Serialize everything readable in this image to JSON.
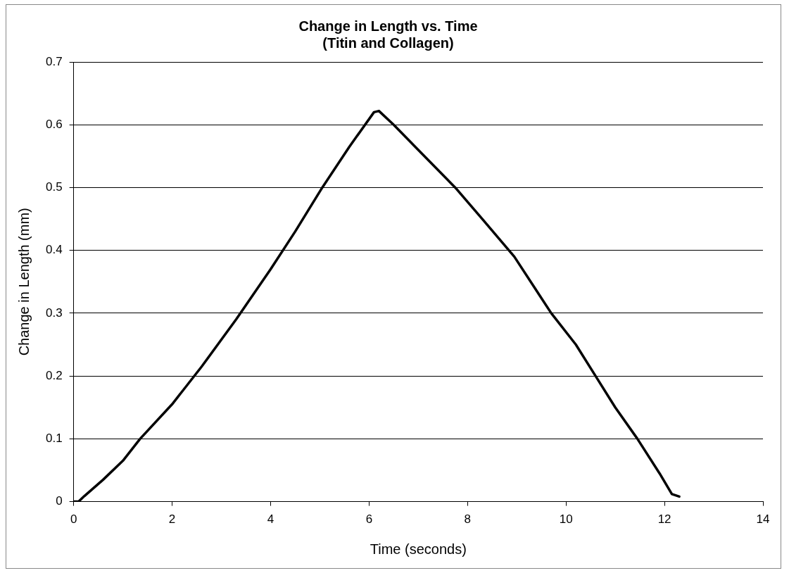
{
  "chart_data": {
    "type": "line",
    "title": "Change in Length vs. Time\n(Titin and Collagen)",
    "xlabel": "Time (seconds)",
    "ylabel": "Change in Length (mm)",
    "x": [
      0,
      0.1,
      0.22,
      0.6,
      1.0,
      1.35,
      2.0,
      2.6,
      3.3,
      4.0,
      4.5,
      5.05,
      5.6,
      6.1,
      6.2,
      6.5,
      7.0,
      7.75,
      8.3,
      8.95,
      9.7,
      10.2,
      10.6,
      11.0,
      11.45,
      11.9,
      12.15,
      12.3
    ],
    "series": [
      {
        "color": "#000000",
        "values": [
          0,
          0,
          0.009,
          0.035,
          0.065,
          0.1,
          0.155,
          0.215,
          0.29,
          0.37,
          0.43,
          0.5,
          0.565,
          0.62,
          0.622,
          0.6,
          0.56,
          0.5,
          0.45,
          0.39,
          0.3,
          0.25,
          0.2,
          0.15,
          0.1,
          0.045,
          0.012,
          0.008
        ]
      }
    ],
    "xlim": [
      0,
      14
    ],
    "xticks": [
      0,
      2,
      4,
      6,
      8,
      10,
      12,
      14
    ],
    "ylim": [
      0,
      0.7
    ],
    "yticks": [
      0,
      0.1,
      0.2,
      0.3,
      0.4,
      0.5,
      0.6,
      0.7
    ],
    "grid": "y",
    "marker": "none",
    "line_style": "solid"
  }
}
